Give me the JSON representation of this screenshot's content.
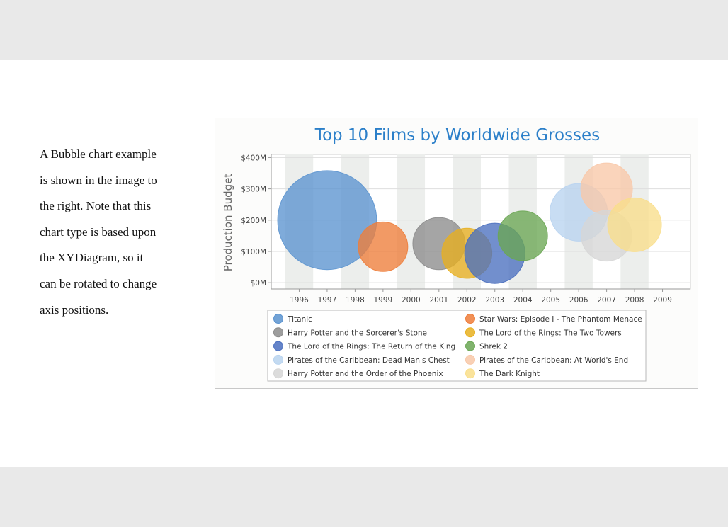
{
  "paragraph": {
    "lines": [
      "A Bubble chart example",
      "is shown in the image to",
      "the right. Note that this",
      "chart type is based upon",
      "the XYDiagram, so it",
      "can be rotated to change",
      "axis positions."
    ]
  },
  "chart_data": {
    "type": "bubble",
    "title": "Top 10 Films by Worldwide Grosses",
    "xlabel": "",
    "ylabel": "Production Budget",
    "xlim": [
      1995,
      2010
    ],
    "ylim": [
      -20,
      410
    ],
    "x_ticks": [
      1996,
      1997,
      1998,
      1999,
      2000,
      2001,
      2002,
      2003,
      2004,
      2005,
      2006,
      2007,
      2008,
      2009
    ],
    "y_ticks": [
      "$0M",
      "$100M",
      "$200M",
      "$300M",
      "$400M"
    ],
    "y_tick_values": [
      0,
      100,
      200,
      300,
      400
    ],
    "grid": true,
    "legend_position": "bottom",
    "series": [
      {
        "name": "Titanic",
        "x": 1997,
        "y": 200,
        "size": 1.84,
        "color": "#5b93cf"
      },
      {
        "name": "Star Wars: Episode I - The Phantom Menace",
        "x": 1999,
        "y": 115,
        "size": 0.92,
        "color": "#ee7d3a"
      },
      {
        "name": "Harry Potter and the Sorcerer's Stone",
        "x": 2001,
        "y": 125,
        "size": 0.97,
        "color": "#8c8c8c"
      },
      {
        "name": "The Lord of the Rings: The Two Towers",
        "x": 2002,
        "y": 94,
        "size": 0.93,
        "color": "#e8b020"
      },
      {
        "name": "The Lord of the Rings: The Return of the King",
        "x": 2003,
        "y": 94,
        "size": 1.12,
        "color": "#4a6fbf"
      },
      {
        "name": "Shrek 2",
        "x": 2004,
        "y": 150,
        "size": 0.92,
        "color": "#6aa653"
      },
      {
        "name": "Pirates of the Caribbean: Dead Man's Chest",
        "x": 2006,
        "y": 225,
        "size": 1.07,
        "color": "#b8d3ef"
      },
      {
        "name": "Pirates of the Caribbean: At World's End",
        "x": 2007,
        "y": 300,
        "size": 0.96,
        "color": "#f8c8a8"
      },
      {
        "name": "Harry Potter and the Order of the Phoenix",
        "x": 2007,
        "y": 150,
        "size": 0.94,
        "color": "#d6d6d6"
      },
      {
        "name": "The Dark Knight",
        "x": 2008,
        "y": 185,
        "size": 1.0,
        "color": "#f9de8a"
      }
    ],
    "legend_order": [
      0,
      1,
      2,
      3,
      4,
      5,
      6,
      7,
      8,
      9
    ]
  }
}
